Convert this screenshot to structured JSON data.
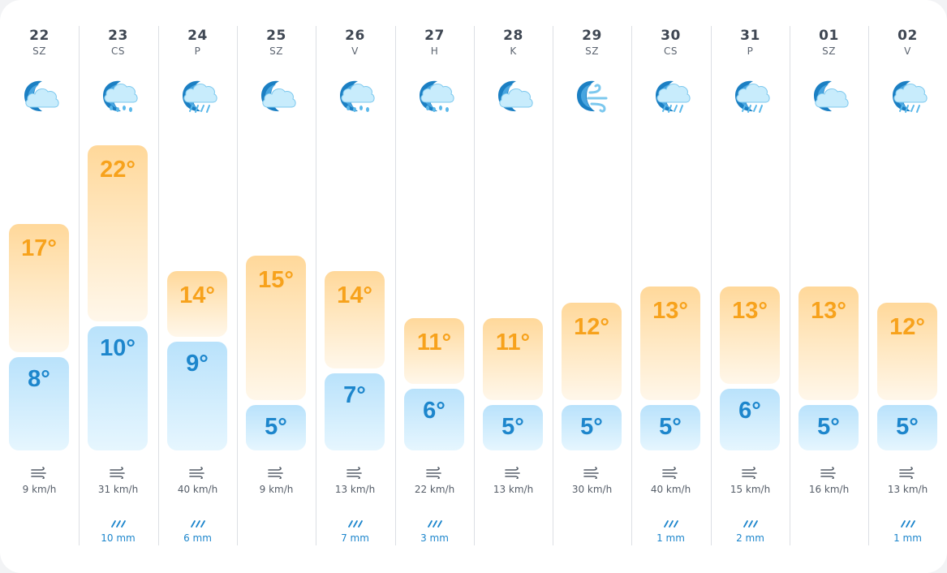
{
  "forecast": {
    "days": [
      {
        "date": "22",
        "dow": "SZ",
        "icon": "night-partly-cloudy-icon",
        "max": "17°",
        "min": "8°",
        "max_value": 17,
        "min_value": 8,
        "wind": "9 km/h",
        "rain": ""
      },
      {
        "date": "23",
        "dow": "CS",
        "icon": "night-rain-icon",
        "max": "22°",
        "min": "10°",
        "max_value": 22,
        "min_value": 10,
        "wind": "31 km/h",
        "rain": "10 mm"
      },
      {
        "date": "24",
        "dow": "P",
        "icon": "night-drizzle-icon",
        "max": "14°",
        "min": "9°",
        "max_value": 14,
        "min_value": 9,
        "wind": "40 km/h",
        "rain": "6 mm"
      },
      {
        "date": "25",
        "dow": "SZ",
        "icon": "night-partly-cloudy-icon",
        "max": "15°",
        "min": "5°",
        "max_value": 15,
        "min_value": 5,
        "wind": "9 km/h",
        "rain": ""
      },
      {
        "date": "26",
        "dow": "V",
        "icon": "night-rain-icon",
        "max": "14°",
        "min": "7°",
        "max_value": 14,
        "min_value": 7,
        "wind": "13 km/h",
        "rain": "7 mm"
      },
      {
        "date": "27",
        "dow": "H",
        "icon": "night-rain-icon",
        "max": "11°",
        "min": "6°",
        "max_value": 11,
        "min_value": 6,
        "wind": "22 km/h",
        "rain": "3 mm"
      },
      {
        "date": "28",
        "dow": "K",
        "icon": "night-partly-cloudy-icon",
        "max": "11°",
        "min": "5°",
        "max_value": 11,
        "min_value": 5,
        "wind": "13 km/h",
        "rain": ""
      },
      {
        "date": "29",
        "dow": "SZ",
        "icon": "night-windy-icon",
        "max": "12°",
        "min": "5°",
        "max_value": 12,
        "min_value": 5,
        "wind": "30 km/h",
        "rain": ""
      },
      {
        "date": "30",
        "dow": "CS",
        "icon": "night-drizzle-icon",
        "max": "13°",
        "min": "5°",
        "max_value": 13,
        "min_value": 5,
        "wind": "40 km/h",
        "rain": "1 mm"
      },
      {
        "date": "31",
        "dow": "P",
        "icon": "night-drizzle-icon",
        "max": "13°",
        "min": "6°",
        "max_value": 13,
        "min_value": 6,
        "wind": "15 km/h",
        "rain": "2 mm"
      },
      {
        "date": "01",
        "dow": "SZ",
        "icon": "night-partly-cloudy-icon",
        "max": "13°",
        "min": "5°",
        "max_value": 13,
        "min_value": 5,
        "wind": "16 km/h",
        "rain": ""
      },
      {
        "date": "02",
        "dow": "V",
        "icon": "night-drizzle-icon",
        "max": "12°",
        "min": "5°",
        "max_value": 12,
        "min_value": 5,
        "wind": "13 km/h",
        "rain": "1 mm"
      }
    ]
  },
  "colors": {
    "max_temp": "#f7a21c",
    "min_temp": "#1d86cc",
    "rain": "#1d86cc"
  }
}
